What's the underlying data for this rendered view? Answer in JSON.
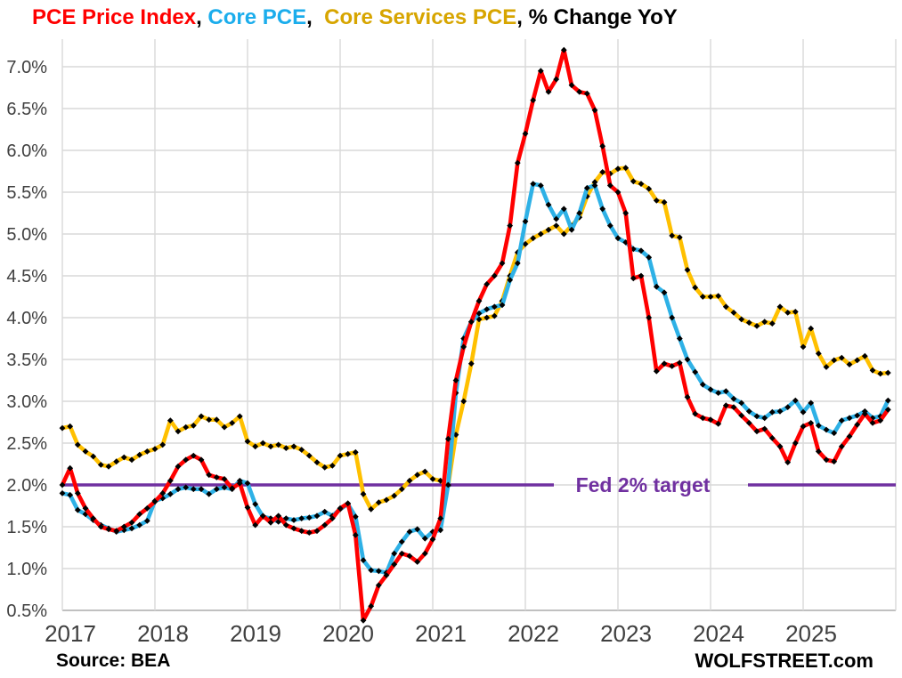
{
  "title": {
    "parts": [
      {
        "text": "PCE Price Index",
        "color": "#FF0000"
      },
      {
        "text": ", ",
        "color": "#000000"
      },
      {
        "text": "Core PCE",
        "color": "#1BADEC"
      },
      {
        "text": ",  ",
        "color": "#000000"
      },
      {
        "text": "Core Services PCE",
        "color": "#D7A500"
      },
      {
        "text": ", % Change YoY",
        "color": "#000000"
      }
    ]
  },
  "footer": {
    "source": "Source: BEA",
    "watermark": "WOLFSTREET.com"
  },
  "chart_data": {
    "type": "line",
    "title": "PCE Price Index, Core PCE, Core Services PCE, % Change YoY",
    "x_range": [
      "2017-01",
      "2025-12"
    ],
    "frequency": "monthly",
    "x_tick_labels": [
      "2017",
      "2018",
      "2019",
      "2020",
      "2021",
      "2022",
      "2023",
      "2024",
      "2025"
    ],
    "y_tick_labels": [
      "0.5%",
      "1.0%",
      "1.5%",
      "2.0%",
      "2.5%",
      "3.0%",
      "3.5%",
      "4.0%",
      "4.5%",
      "5.0%",
      "5.5%",
      "6.0%",
      "6.5%",
      "7.0%"
    ],
    "ylim": [
      0.5,
      7.0
    ],
    "ytick_step": 0.5,
    "grid": true,
    "gridline_color": "#D9D9D9",
    "axis_label_color": "#3F3F3F",
    "marker_color": "#000000",
    "marker_shape": "diamond",
    "fed_target": {
      "label": "Fed 2% target",
      "value": 2.0,
      "color": "#7030A0"
    },
    "series": [
      {
        "name": "PCE Price Index",
        "color": "#FF0000",
        "values": [
          2.0,
          2.2,
          1.9,
          1.72,
          1.6,
          1.5,
          1.47,
          1.45,
          1.5,
          1.55,
          1.65,
          1.72,
          1.8,
          1.9,
          2.05,
          2.22,
          2.3,
          2.35,
          2.3,
          2.12,
          2.09,
          2.07,
          1.96,
          2.02,
          1.73,
          1.52,
          1.63,
          1.55,
          1.63,
          1.52,
          1.48,
          1.45,
          1.43,
          1.45,
          1.52,
          1.6,
          1.72,
          1.78,
          1.4,
          0.38,
          0.55,
          0.8,
          0.92,
          1.05,
          1.18,
          1.15,
          1.08,
          1.18,
          1.35,
          1.6,
          2.55,
          3.25,
          3.65,
          3.95,
          4.2,
          4.4,
          4.5,
          4.65,
          5.1,
          5.85,
          6.2,
          6.6,
          6.95,
          6.7,
          6.85,
          7.2,
          6.78,
          6.7,
          6.68,
          6.48,
          6.05,
          5.58,
          5.5,
          5.25,
          4.47,
          4.5,
          4.0,
          3.36,
          3.45,
          3.42,
          3.46,
          3.05,
          2.85,
          2.8,
          2.78,
          2.73,
          2.95,
          2.93,
          2.83,
          2.74,
          2.64,
          2.67,
          2.56,
          2.46,
          2.27,
          2.5,
          2.7,
          2.74,
          2.4,
          2.3,
          2.28,
          2.46,
          2.58,
          2.72,
          2.85,
          2.74,
          2.77,
          2.9
        ]
      },
      {
        "name": "Core PCE",
        "color": "#2EB1E6",
        "values": [
          1.9,
          1.88,
          1.7,
          1.65,
          1.58,
          1.52,
          1.48,
          1.44,
          1.46,
          1.48,
          1.52,
          1.57,
          1.81,
          1.84,
          1.89,
          1.95,
          1.97,
          1.95,
          1.95,
          1.89,
          1.95,
          1.97,
          1.95,
          2.05,
          2.02,
          1.77,
          1.62,
          1.6,
          1.56,
          1.6,
          1.58,
          1.6,
          1.61,
          1.63,
          1.68,
          1.63,
          1.71,
          1.77,
          1.62,
          1.1,
          0.98,
          0.97,
          0.95,
          1.18,
          1.32,
          1.44,
          1.47,
          1.36,
          1.44,
          1.46,
          2.0,
          3.1,
          3.75,
          3.95,
          4.05,
          4.1,
          4.13,
          4.15,
          4.45,
          4.65,
          5.15,
          5.6,
          5.58,
          5.35,
          5.18,
          5.3,
          5.05,
          5.25,
          5.55,
          5.58,
          5.3,
          5.1,
          4.95,
          4.9,
          4.82,
          4.8,
          4.72,
          4.37,
          4.3,
          4.0,
          3.75,
          3.5,
          3.35,
          3.2,
          3.14,
          3.1,
          3.12,
          3.03,
          2.98,
          2.88,
          2.82,
          2.8,
          2.87,
          2.88,
          2.93,
          3.01,
          2.87,
          2.98,
          2.71,
          2.66,
          2.62,
          2.77,
          2.8,
          2.83,
          2.88,
          2.8,
          2.82,
          3.01
        ]
      },
      {
        "name": "Core Services PCE",
        "color": "#FFC000",
        "values": [
          2.68,
          2.7,
          2.48,
          2.4,
          2.34,
          2.24,
          2.22,
          2.28,
          2.33,
          2.3,
          2.36,
          2.4,
          2.43,
          2.48,
          2.77,
          2.64,
          2.69,
          2.71,
          2.82,
          2.78,
          2.78,
          2.69,
          2.74,
          2.82,
          2.52,
          2.46,
          2.5,
          2.46,
          2.48,
          2.44,
          2.46,
          2.42,
          2.35,
          2.27,
          2.21,
          2.23,
          2.35,
          2.37,
          2.39,
          1.89,
          1.71,
          1.79,
          1.82,
          1.87,
          1.95,
          2.05,
          2.12,
          2.16,
          2.07,
          2.05,
          1.99,
          2.6,
          3.0,
          3.45,
          3.98,
          4.0,
          4.02,
          4.2,
          4.5,
          4.78,
          4.88,
          4.95,
          5.0,
          5.05,
          5.1,
          5.0,
          5.1,
          5.2,
          5.45,
          5.62,
          5.74,
          5.72,
          5.78,
          5.79,
          5.63,
          5.6,
          5.54,
          5.4,
          5.38,
          4.98,
          4.96,
          4.57,
          4.36,
          4.25,
          4.25,
          4.26,
          4.13,
          4.06,
          3.98,
          3.94,
          3.9,
          3.95,
          3.93,
          4.13,
          4.06,
          4.07,
          3.65,
          3.87,
          3.57,
          3.41,
          3.49,
          3.52,
          3.44,
          3.49,
          3.54,
          3.37,
          3.33,
          3.34
        ]
      }
    ]
  }
}
